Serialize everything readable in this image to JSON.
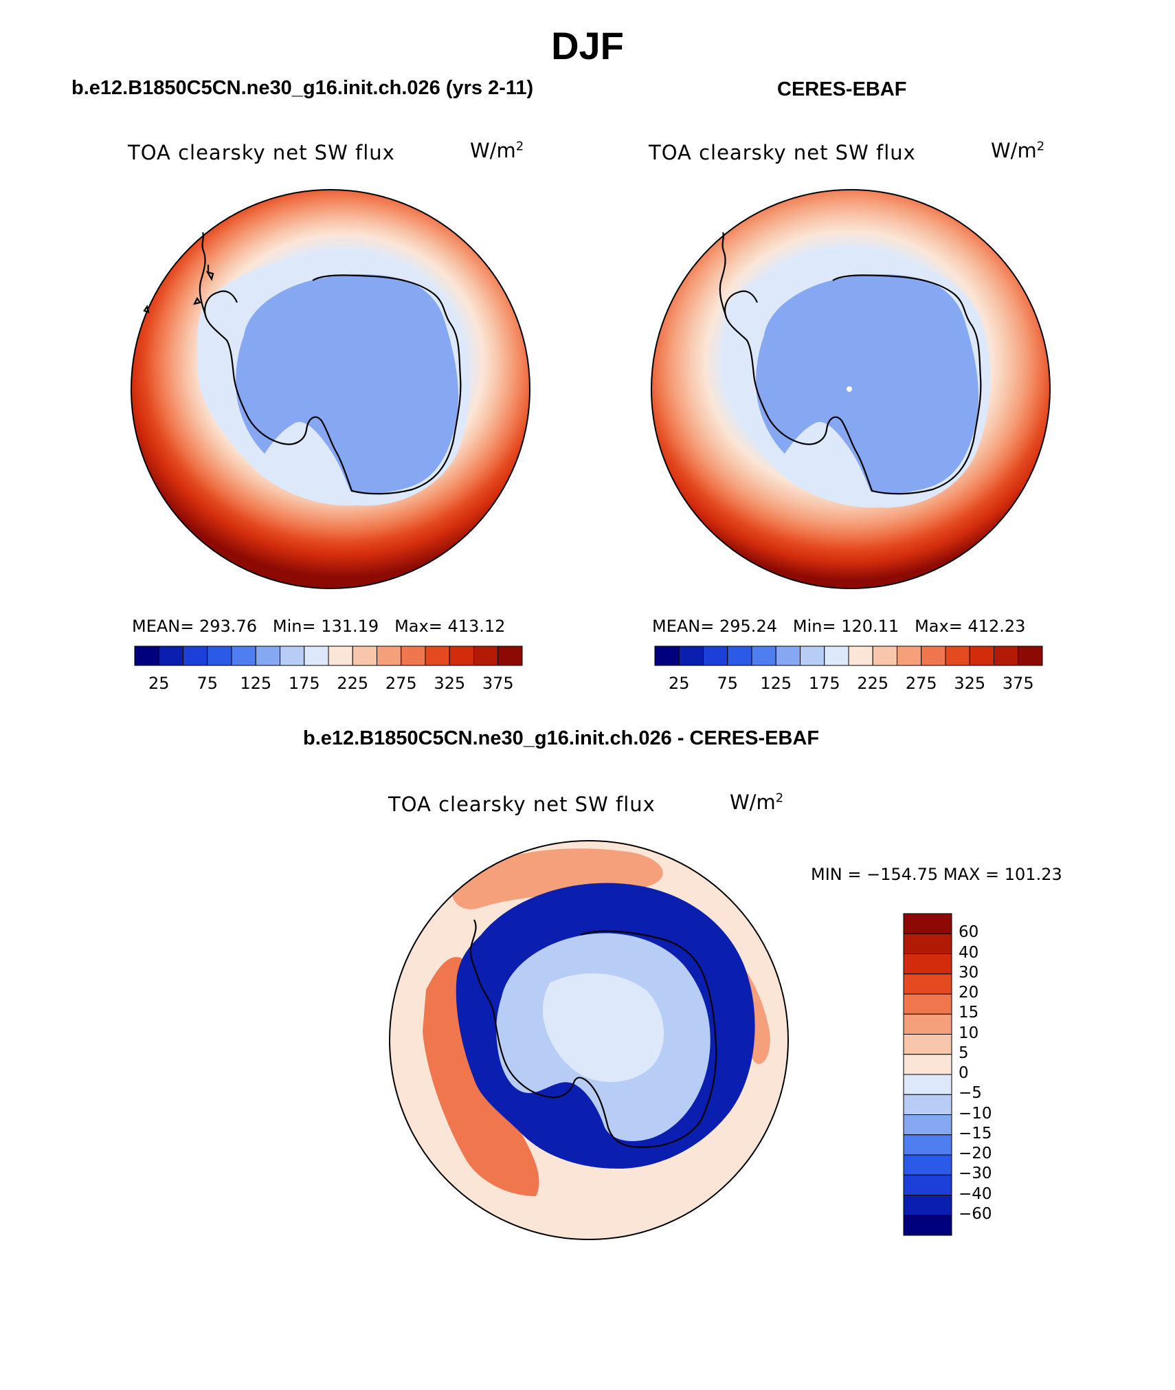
{
  "figure": {
    "season": "DJF",
    "field_title": "TOA clearsky net SW flux",
    "units_base": "W/m",
    "units_exp": "2"
  },
  "panels": {
    "model": {
      "case": "b.e12.B1850C5CN.ne30_g16.init.ch.026 (yrs 2-11)",
      "stats_mean_label": "MEAN=",
      "stats_mean": "293.76",
      "stats_min_label": "Min=",
      "stats_min": "131.19",
      "stats_max_label": "Max=",
      "stats_max": "413.12"
    },
    "obs": {
      "case": "CERES-EBAF",
      "stats_mean_label": "MEAN=",
      "stats_mean": "295.24",
      "stats_min_label": "Min=",
      "stats_min": "120.11",
      "stats_max_label": "Max=",
      "stats_max": "412.23"
    },
    "diff": {
      "case": "b.e12.B1850C5CN.ne30_g16.init.ch.026 - CERES-EBAF",
      "minmax": "MIN = −154.75 MAX = 101.23"
    }
  },
  "colorbars": {
    "abs_ticks": [
      "25",
      "75",
      "125",
      "175",
      "225",
      "275",
      "325",
      "375"
    ],
    "abs_colors": [
      "#00007f",
      "#0a1fb0",
      "#1b3fd8",
      "#2c5ae8",
      "#4f7ef0",
      "#86a8f2",
      "#b8cdf5",
      "#dde9fb",
      "#fbe5d6",
      "#f8c6ab",
      "#f5a07b",
      "#f0774d",
      "#e4491f",
      "#d22c0c",
      "#b31a05",
      "#8c0a03"
    ],
    "diff_levels": [
      "60",
      "40",
      "30",
      "20",
      "15",
      "10",
      "5",
      "0",
      "−5",
      "−10",
      "−15",
      "−20",
      "−30",
      "−40",
      "−60"
    ],
    "diff_colors": [
      "#8c0a03",
      "#b31a05",
      "#d22c0c",
      "#e4491f",
      "#f0774d",
      "#f5a07b",
      "#f8c6ab",
      "#fbe5d6",
      "#dde9fb",
      "#b8cdf5",
      "#86a8f2",
      "#4f7ef0",
      "#2c5ae8",
      "#1b3fd8",
      "#0a1fb0",
      "#00007f"
    ]
  },
  "map_colors": {
    "ocean_high": "#8c0a03",
    "ring1": "#b31a05",
    "ring2": "#d22c0c",
    "ring3": "#e4491f",
    "ring4": "#f0774d",
    "ring5": "#f5a07b",
    "ring6": "#f8c6ab",
    "ring7": "#fbe5d6",
    "ice_light": "#b8cdf5",
    "ice": "#86a8f2",
    "ice_pale": "#dde9fb",
    "diff_base": "#fbe5d6",
    "diff_pos": "#f0774d",
    "diff_pos2": "#f5a07b",
    "diff_neg": "#0a1fb0",
    "diff_neg2": "#2c5ae8",
    "coast": "#000000"
  }
}
